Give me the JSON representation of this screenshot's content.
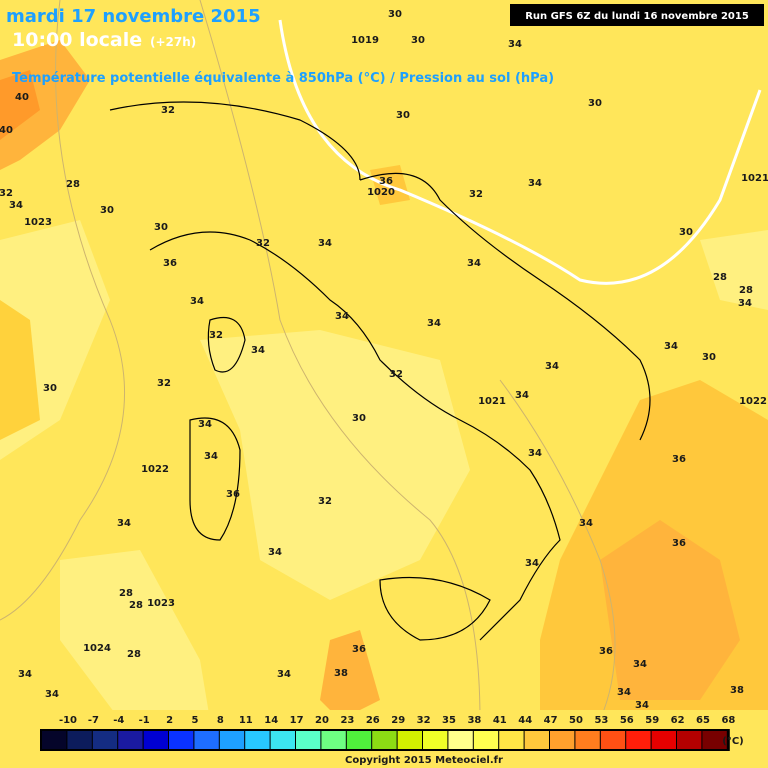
{
  "header": {
    "date": "mardi 17 novembre 2015",
    "time": "10:00 locale",
    "lead": "(+27h)",
    "subtitle": "Température potentielle équivalente à 850hPa (°C) / Pression au sol (hPa)",
    "run": "Run GFS 6Z du lundi 16 novembre 2015"
  },
  "map_labels": [
    "30",
    "1019",
    "30",
    "34",
    "40",
    "40",
    "32",
    "30",
    "30",
    "32",
    "28",
    "34",
    "1023",
    "30",
    "30",
    "36",
    "1020",
    "32",
    "34",
    "1021",
    "32",
    "34",
    "36",
    "34",
    "30",
    "28",
    "28",
    "34",
    "34",
    "32",
    "34",
    "34",
    "34",
    "34",
    "30",
    "30",
    "32",
    "32",
    "34",
    "1021",
    "34",
    "1022",
    "34",
    "30",
    "34",
    "1022",
    "34",
    "36",
    "36",
    "32",
    "34",
    "34",
    "36",
    "34",
    "34",
    "28",
    "28",
    "1023",
    "1024",
    "28",
    "36",
    "36",
    "38",
    "34",
    "34",
    "34",
    "34",
    "34",
    "38",
    "34",
    "34"
  ],
  "legend": {
    "labels": [
      "-10",
      "-7",
      "-4",
      "-1",
      "2",
      "5",
      "8",
      "11",
      "14",
      "17",
      "20",
      "23",
      "26",
      "29",
      "32",
      "35",
      "38",
      "41",
      "44",
      "47",
      "50",
      "53",
      "56",
      "59",
      "62",
      "65",
      "68"
    ],
    "colors": [
      "#05052a",
      "#0c1c5c",
      "#142c82",
      "#1a1aa0",
      "#0000d2",
      "#0a32ff",
      "#1e6eff",
      "#1ea0ff",
      "#28c8ff",
      "#3ce6f0",
      "#5affc8",
      "#6eff82",
      "#50f03c",
      "#8cdc14",
      "#d2f000",
      "#f0ff28",
      "#ffff8c",
      "#ffff50",
      "#ffe646",
      "#ffc83c",
      "#ffa02d",
      "#ff7d1e",
      "#ff5014",
      "#ff1e0a",
      "#e60000",
      "#b40000",
      "#780000"
    ],
    "unit": "(°C)"
  },
  "footer": {
    "copyright": "Copyright 2015 Meteociel.fr"
  }
}
